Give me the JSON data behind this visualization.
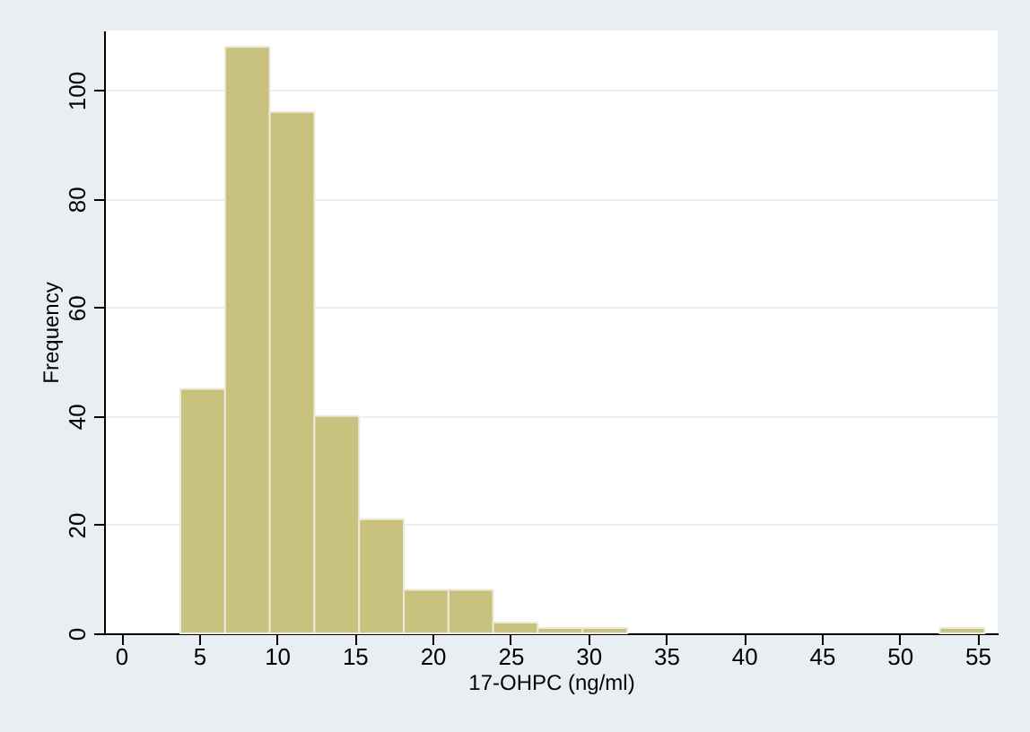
{
  "chart_data": {
    "type": "histogram",
    "xlabel": "17-OHPC (ng/ml)",
    "ylabel": "Frequency",
    "bins": [
      3.8,
      6.67,
      9.54,
      12.41,
      15.28,
      18.15,
      21.02,
      23.89,
      26.76,
      29.63,
      32.5,
      35.37,
      38.24,
      41.11,
      43.98,
      46.85,
      49.72,
      52.59,
      55.46
    ],
    "values": [
      45,
      108,
      96,
      40,
      21,
      8,
      8,
      2,
      1,
      1,
      0,
      0,
      0,
      0,
      0,
      0,
      0,
      1
    ],
    "color": "#c8c27e",
    "xlim": [
      -1.1,
      56.3
    ],
    "xticks": [
      0,
      5,
      10,
      15,
      20,
      25,
      30,
      35,
      40,
      45,
      50,
      55
    ],
    "ylim": [
      0,
      111
    ],
    "yticks": [
      0,
      20,
      40,
      60,
      80,
      100
    ],
    "grid": "y"
  }
}
